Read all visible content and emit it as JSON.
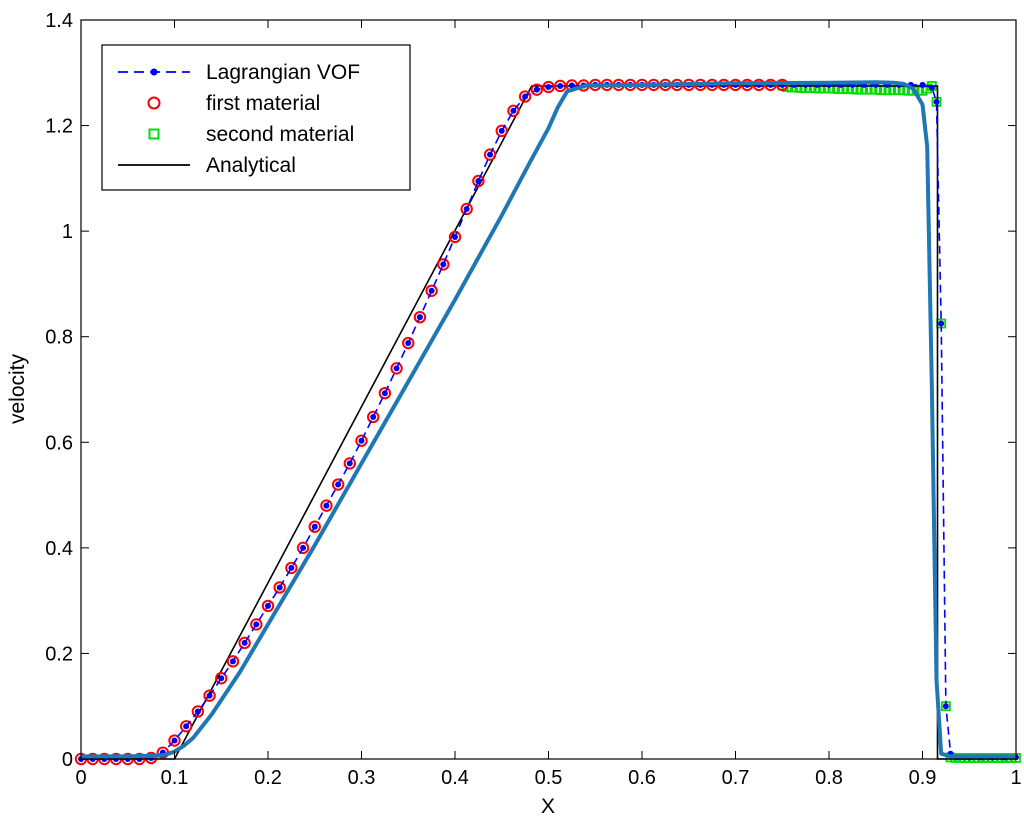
{
  "chart_data": {
    "type": "line",
    "title": "",
    "xlabel": "X",
    "ylabel": "velocity",
    "xlim": [
      0,
      1
    ],
    "ylim": [
      0,
      1.4
    ],
    "xticks": [
      "0",
      "0.1",
      "0.2",
      "0.3",
      "0.4",
      "0.5",
      "0.6",
      "0.7",
      "0.8",
      "0.9",
      "1"
    ],
    "yticks": [
      "0",
      "0.2",
      "0.4",
      "0.6",
      "0.8",
      "1",
      "1.2",
      "1.4"
    ],
    "grid": false,
    "legend_position": "top-left",
    "colors": {
      "lagrangian": "#0000ff",
      "first_material": "#ff0000",
      "second_material": "#00dd00",
      "analytical": "#000000",
      "reference": "#1f77b4"
    },
    "legend": [
      {
        "label": "Lagrangian VOF",
        "style": "dash-dot-marker"
      },
      {
        "label": "first material",
        "style": "circle"
      },
      {
        "label": "second material",
        "style": "square"
      },
      {
        "label": "Analytical",
        "style": "solid"
      }
    ],
    "series": [
      {
        "name": "Lagrangian VOF",
        "x": [
          0.0,
          0.0125,
          0.025,
          0.0375,
          0.05,
          0.0625,
          0.075,
          0.0875,
          0.1,
          0.1125,
          0.125,
          0.1375,
          0.15,
          0.1625,
          0.175,
          0.1875,
          0.2,
          0.2125,
          0.225,
          0.2375,
          0.25,
          0.2625,
          0.275,
          0.2875,
          0.3,
          0.3125,
          0.325,
          0.3375,
          0.35,
          0.3625,
          0.375,
          0.3875,
          0.4,
          0.4125,
          0.425,
          0.4375,
          0.45,
          0.4625,
          0.475,
          0.4875,
          0.5,
          0.5125,
          0.525,
          0.5375,
          0.55,
          0.5625,
          0.575,
          0.5875,
          0.6,
          0.6125,
          0.625,
          0.6375,
          0.65,
          0.6625,
          0.675,
          0.6875,
          0.7,
          0.7125,
          0.725,
          0.7375,
          0.75,
          0.7625,
          0.775,
          0.7875,
          0.8,
          0.8125,
          0.825,
          0.8375,
          0.85,
          0.8625,
          0.875,
          0.8875,
          0.9,
          0.91,
          0.915,
          0.92,
          0.925,
          0.93,
          0.9375,
          0.95,
          0.9625,
          0.975,
          0.9875,
          1.0
        ],
        "y": [
          0.0,
          0.0,
          0.0,
          0.0,
          0.0,
          0.0,
          0.002,
          0.012,
          0.035,
          0.062,
          0.09,
          0.12,
          0.153,
          0.185,
          0.22,
          0.255,
          0.29,
          0.325,
          0.362,
          0.4,
          0.44,
          0.48,
          0.52,
          0.56,
          0.603,
          0.648,
          0.693,
          0.74,
          0.788,
          0.837,
          0.887,
          0.937,
          0.989,
          1.042,
          1.095,
          1.145,
          1.19,
          1.228,
          1.255,
          1.268,
          1.273,
          1.275,
          1.276,
          1.276,
          1.277,
          1.277,
          1.277,
          1.277,
          1.277,
          1.277,
          1.277,
          1.277,
          1.277,
          1.277,
          1.277,
          1.277,
          1.277,
          1.277,
          1.277,
          1.277,
          1.277,
          1.277,
          1.277,
          1.277,
          1.277,
          1.277,
          1.277,
          1.277,
          1.277,
          1.277,
          1.277,
          1.277,
          1.277,
          1.272,
          1.245,
          0.825,
          0.1,
          0.01,
          0.003,
          0.003,
          0.003,
          0.003,
          0.003,
          0.003
        ]
      },
      {
        "name": "first material",
        "x": [
          0.0,
          0.0125,
          0.025,
          0.0375,
          0.05,
          0.0625,
          0.075,
          0.0875,
          0.1,
          0.1125,
          0.125,
          0.1375,
          0.15,
          0.1625,
          0.175,
          0.1875,
          0.2,
          0.2125,
          0.225,
          0.2375,
          0.25,
          0.2625,
          0.275,
          0.2875,
          0.3,
          0.3125,
          0.325,
          0.3375,
          0.35,
          0.3625,
          0.375,
          0.3875,
          0.4,
          0.4125,
          0.425,
          0.4375,
          0.45,
          0.4625,
          0.475,
          0.4875,
          0.5,
          0.5125,
          0.525,
          0.5375,
          0.55,
          0.5625,
          0.575,
          0.5875,
          0.6,
          0.6125,
          0.625,
          0.6375,
          0.65,
          0.6625,
          0.675,
          0.6875,
          0.7,
          0.7125,
          0.725,
          0.7375,
          0.75
        ],
        "y": [
          0.0,
          0.0,
          0.0,
          0.0,
          0.0,
          0.0,
          0.002,
          0.012,
          0.035,
          0.062,
          0.09,
          0.12,
          0.153,
          0.185,
          0.22,
          0.255,
          0.29,
          0.325,
          0.362,
          0.4,
          0.44,
          0.48,
          0.52,
          0.56,
          0.603,
          0.648,
          0.693,
          0.74,
          0.788,
          0.837,
          0.887,
          0.937,
          0.989,
          1.042,
          1.095,
          1.145,
          1.19,
          1.228,
          1.255,
          1.268,
          1.273,
          1.275,
          1.276,
          1.276,
          1.277,
          1.277,
          1.277,
          1.277,
          1.277,
          1.277,
          1.277,
          1.277,
          1.277,
          1.277,
          1.277,
          1.277,
          1.277,
          1.277,
          1.277,
          1.277,
          1.277
        ]
      },
      {
        "name": "second material",
        "x": [
          0.75,
          0.755,
          0.76,
          0.765,
          0.77,
          0.775,
          0.78,
          0.785,
          0.79,
          0.795,
          0.8,
          0.805,
          0.81,
          0.815,
          0.82,
          0.825,
          0.83,
          0.835,
          0.84,
          0.845,
          0.85,
          0.855,
          0.86,
          0.865,
          0.87,
          0.875,
          0.88,
          0.885,
          0.89,
          0.895,
          0.9,
          0.905,
          0.91,
          0.915,
          0.92,
          0.925,
          0.93,
          0.935,
          0.94,
          0.945,
          0.95,
          0.955,
          0.96,
          0.965,
          0.97,
          0.975,
          0.98,
          0.985,
          0.99,
          0.995,
          1.0
        ],
        "y": [
          1.276,
          1.273,
          1.272,
          1.272,
          1.271,
          1.271,
          1.271,
          1.271,
          1.27,
          1.27,
          1.27,
          1.27,
          1.269,
          1.269,
          1.269,
          1.269,
          1.268,
          1.268,
          1.268,
          1.268,
          1.268,
          1.267,
          1.267,
          1.267,
          1.267,
          1.267,
          1.267,
          1.266,
          1.266,
          1.266,
          1.266,
          1.27,
          1.275,
          1.245,
          0.825,
          0.1,
          0.003,
          0.002,
          0.002,
          0.002,
          0.002,
          0.002,
          0.002,
          0.002,
          0.002,
          0.002,
          0.002,
          0.002,
          0.002,
          0.002,
          0.002
        ]
      },
      {
        "name": "Analytical",
        "x": [
          0.0,
          0.1,
          0.482,
          0.916,
          0.916,
          1.0
        ],
        "y": [
          0.0,
          0.0,
          1.275,
          1.275,
          0.0,
          0.0
        ]
      },
      {
        "name": "",
        "x": [
          0.0,
          0.05,
          0.08,
          0.09,
          0.1,
          0.11,
          0.12,
          0.14,
          0.17,
          0.2,
          0.25,
          0.3,
          0.35,
          0.4,
          0.45,
          0.48,
          0.5,
          0.51,
          0.52,
          0.54,
          0.6,
          0.7,
          0.8,
          0.85,
          0.87,
          0.88,
          0.89,
          0.9,
          0.905,
          0.91,
          0.915,
          0.92,
          0.93,
          0.95,
          1.0
        ],
        "y": [
          0.005,
          0.005,
          0.006,
          0.008,
          0.014,
          0.025,
          0.04,
          0.085,
          0.165,
          0.255,
          0.405,
          0.56,
          0.715,
          0.87,
          1.03,
          1.13,
          1.195,
          1.235,
          1.265,
          1.276,
          1.277,
          1.28,
          1.281,
          1.282,
          1.281,
          1.279,
          1.27,
          1.24,
          1.16,
          0.7,
          0.15,
          0.01,
          0.005,
          0.005,
          0.005
        ]
      }
    ]
  }
}
